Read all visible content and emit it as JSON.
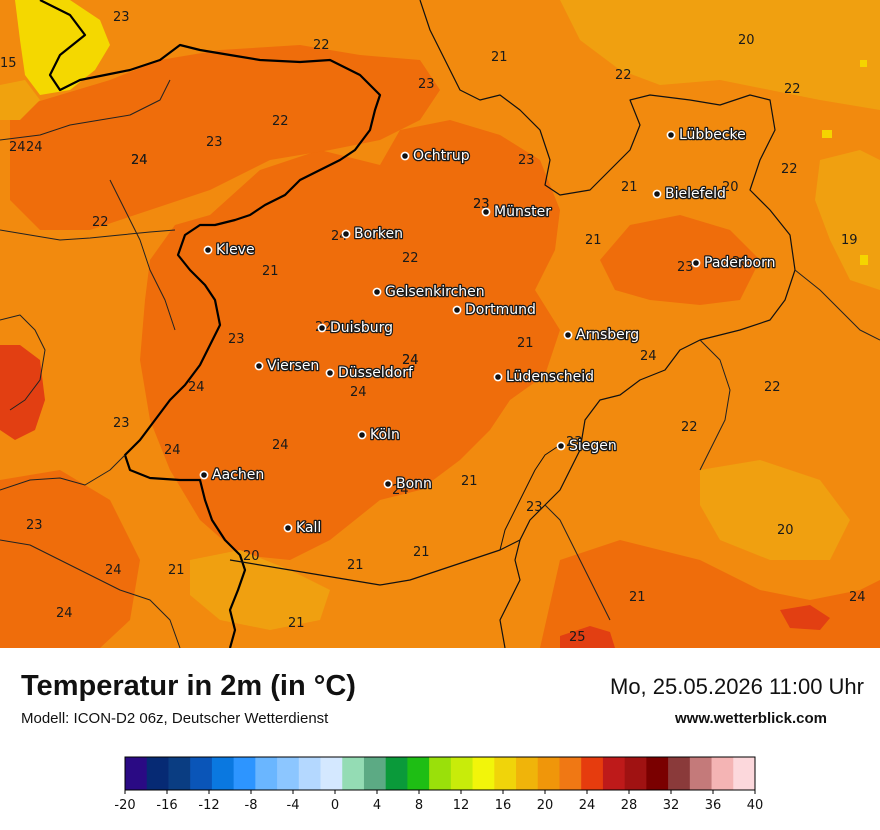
{
  "title": "Temperatur in 2m (in °C)",
  "model": "Modell: ICON-D2 06z, Deutscher Wetterdienst",
  "datetime": "Mo, 25.05.2026 11:00 Uhr",
  "website": "www.wetterblick.com",
  "colors": {
    "t20": "#f0a010",
    "t21": "#f28a0e",
    "t22": "#f07b0c",
    "t23": "#ee6a0a",
    "t24": "#eb5a10",
    "t25": "#e23a12",
    "t16": "#f5d400",
    "t18": "#f8e210",
    "border_dark": "#000000",
    "border_light": "#2a2a2a"
  },
  "cities": [
    {
      "name": "Ochtrup"
    },
    {
      "name": "Lübbecke"
    },
    {
      "name": "Bielefeld"
    },
    {
      "name": "Münster"
    },
    {
      "name": "Borken"
    },
    {
      "name": "Kleve"
    },
    {
      "name": "Paderborn"
    },
    {
      "name": "Gelsenkirchen"
    },
    {
      "name": "Dortmund"
    },
    {
      "name": "Duisburg"
    },
    {
      "name": "Arnsberg"
    },
    {
      "name": "Viersen"
    },
    {
      "name": "Düsseldorf"
    },
    {
      "name": "Lüdenscheid"
    },
    {
      "name": "Köln"
    },
    {
      "name": "Siegen"
    },
    {
      "name": "Aachen"
    },
    {
      "name": "Bonn"
    },
    {
      "name": "Kall"
    }
  ],
  "temperature_labels": [
    "23",
    "22",
    "15",
    "21",
    "20",
    "22",
    "23",
    "22",
    "24",
    "24",
    "23",
    "22",
    "23",
    "20",
    "21",
    "22",
    "23",
    "24",
    "22",
    "19",
    "21",
    "22",
    "21",
    "23",
    "20",
    "23",
    "24",
    "21",
    "24",
    "22",
    "24",
    "24",
    "23",
    "24",
    "24",
    "21",
    "22",
    "23",
    "24",
    "23",
    "22",
    "23",
    "21",
    "24",
    "20",
    "24",
    "21",
    "21",
    "20",
    "24",
    "21",
    "21",
    "25",
    "23",
    "24",
    "24",
    "24"
  ],
  "legend": {
    "ticks": [
      "-20",
      "-16",
      "-12",
      "-8",
      "-4",
      "0",
      "4",
      "8",
      "12",
      "16",
      "20",
      "24",
      "28",
      "32",
      "36",
      "40"
    ],
    "colors": [
      "#2a0a84",
      "#062a74",
      "#0a3d82",
      "#0a55b8",
      "#0a78e0",
      "#2d95ff",
      "#6ab6ff",
      "#8cc6ff",
      "#b4d8ff",
      "#d4e8ff",
      "#94dcb4",
      "#5caa84",
      "#0a9a3a",
      "#1ebe14",
      "#9ae00a",
      "#c8ec0a",
      "#f2f50a",
      "#f0d40a",
      "#f0b40a",
      "#f0960a",
      "#f07814",
      "#e63c0e",
      "#be1a1a",
      "#a01212",
      "#7a0000",
      "#8a3a3a",
      "#c47a7a",
      "#f4b4b4",
      "#fcd8dc"
    ]
  }
}
